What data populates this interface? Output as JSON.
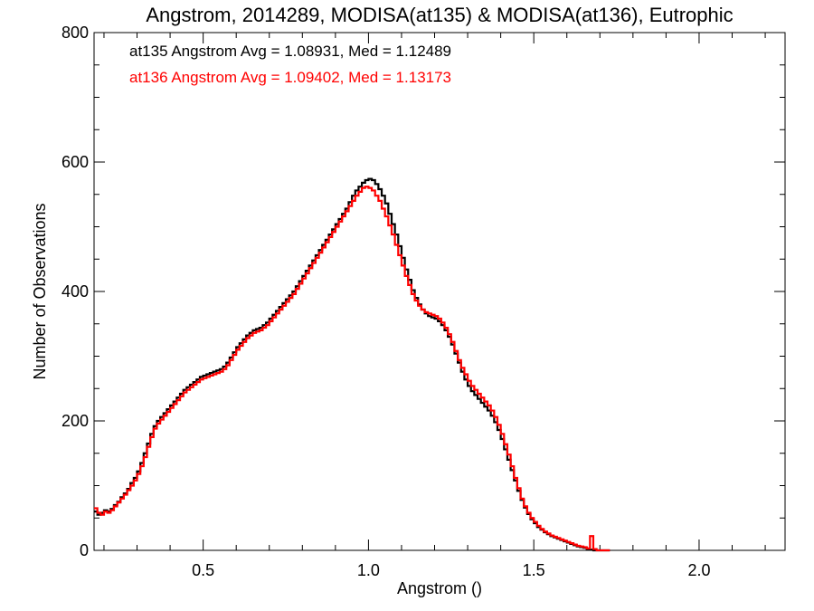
{
  "chart_data": {
    "type": "histogram-step",
    "title": "Angstrom, 2014289, MODISA(at135) & MODISA(at136), Eutrophic",
    "xlabel": "Angstrom ()",
    "ylabel": "Number of Observations",
    "xlim": [
      0.17,
      2.26
    ],
    "ylim": [
      0,
      800
    ],
    "xticks": [
      0.5,
      1.0,
      1.5,
      2.0
    ],
    "xtick_labels": [
      "0.5",
      "1.0",
      "1.5",
      "2.0"
    ],
    "yticks": [
      0,
      200,
      400,
      600,
      800
    ],
    "ytick_labels": [
      "0",
      "200",
      "400",
      "600",
      "800"
    ],
    "bin_width": 0.01,
    "grid": false,
    "legend_position": "top-left",
    "series": [
      {
        "name": "at135",
        "stats_label": "at135 Angstrom Avg = 1.08931, Med = 1.12489",
        "color": "#000000",
        "x0": 0.17,
        "values": [
          60,
          55,
          58,
          62,
          60,
          64,
          70,
          75,
          82,
          88,
          95,
          104,
          112,
          122,
          135,
          150,
          165,
          180,
          192,
          200,
          206,
          212,
          218,
          224,
          230,
          236,
          242,
          248,
          252,
          256,
          260,
          264,
          268,
          270,
          272,
          274,
          276,
          278,
          280,
          284,
          290,
          298,
          306,
          314,
          320,
          326,
          332,
          336,
          340,
          342,
          344,
          348,
          352,
          358,
          364,
          370,
          376,
          382,
          388,
          394,
          400,
          408,
          416,
          424,
          432,
          440,
          448,
          456,
          464,
          472,
          480,
          488,
          496,
          504,
          512,
          520,
          528,
          538,
          548,
          556,
          562,
          568,
          572,
          574,
          572,
          566,
          558,
          548,
          536,
          520,
          504,
          488,
          470,
          452,
          434,
          418,
          402,
          390,
          380,
          372,
          366,
          362,
          360,
          358,
          354,
          348,
          340,
          330,
          318,
          304,
          290,
          276,
          264,
          254,
          246,
          240,
          234,
          228,
          222,
          216,
          208,
          198,
          186,
          172,
          156,
          140,
          124,
          108,
          92,
          78,
          66,
          56,
          48,
          42,
          36,
          32,
          28,
          25,
          22,
          20,
          18,
          16,
          14,
          12,
          10,
          8,
          6,
          5,
          4,
          2,
          1,
          0,
          0,
          0,
          0,
          0
        ]
      },
      {
        "name": "at136",
        "stats_label": "at136 Angstrom Avg = 1.09402, Med = 1.13173",
        "color": "#ff0000",
        "x0": 0.17,
        "values": [
          65,
          58,
          55,
          60,
          58,
          62,
          68,
          74,
          80,
          86,
          93,
          100,
          108,
          118,
          130,
          144,
          160,
          175,
          188,
          196,
          202,
          208,
          214,
          220,
          226,
          232,
          238,
          244,
          248,
          252,
          256,
          260,
          264,
          266,
          268,
          270,
          272,
          274,
          276,
          280,
          286,
          294,
          302,
          310,
          316,
          322,
          328,
          332,
          336,
          338,
          340,
          344,
          348,
          354,
          360,
          366,
          372,
          378,
          384,
          390,
          396,
          404,
          412,
          420,
          428,
          436,
          444,
          452,
          460,
          468,
          476,
          484,
          492,
          500,
          508,
          516,
          524,
          532,
          540,
          548,
          554,
          560,
          562,
          560,
          556,
          548,
          540,
          528,
          516,
          502,
          488,
          472,
          456,
          440,
          424,
          410,
          396,
          386,
          378,
          372,
          368,
          366,
          364,
          362,
          358,
          352,
          344,
          334,
          322,
          308,
          294,
          282,
          272,
          262,
          254,
          248,
          242,
          236,
          230,
          224,
          216,
          206,
          194,
          180,
          164,
          148,
          130,
          112,
          96,
          80,
          68,
          58,
          50,
          44,
          38,
          33,
          29,
          26,
          23,
          21,
          19,
          17,
          15,
          13,
          11,
          9,
          7,
          6,
          5,
          3,
          22,
          2,
          0,
          0,
          0,
          0
        ]
      }
    ]
  }
}
